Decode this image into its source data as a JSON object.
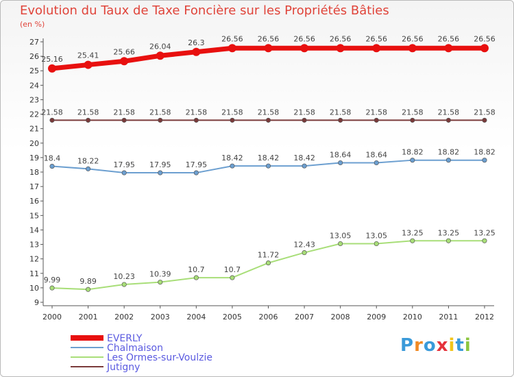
{
  "chart_data": {
    "type": "line",
    "title": "Evolution du Taux de Taxe Foncière sur les Propriétés Bâties",
    "ylabel": "(en %)",
    "xlabel": "",
    "ylim": [
      9,
      27
    ],
    "categories": [
      "2000",
      "2001",
      "2002",
      "2003",
      "2004",
      "2005",
      "2006",
      "2007",
      "2008",
      "2009",
      "2010",
      "2011",
      "2012"
    ],
    "yticks": [
      "9",
      "10",
      "11",
      "12",
      "13",
      "14",
      "15",
      "16",
      "17",
      "18",
      "19",
      "20",
      "21",
      "22",
      "23",
      "24",
      "25",
      "26",
      "27"
    ],
    "series": [
      {
        "name": "EVERLY",
        "color": "#e8100f",
        "values": [
          25.16,
          25.41,
          25.66,
          26.04,
          26.3,
          26.56,
          26.56,
          26.56,
          26.56,
          26.56,
          26.56,
          26.56,
          26.56
        ],
        "labels": [
          "25.16",
          "25.41",
          "25.66",
          "26.04",
          "26.3",
          "26.56",
          "26.56",
          "26.56",
          "26.56",
          "26.56",
          "26.56",
          "26.56",
          "26.56"
        ]
      },
      {
        "name": "Chalmaison",
        "color": "#6c9fd0",
        "values": [
          18.4,
          18.22,
          17.95,
          17.95,
          17.95,
          18.42,
          18.42,
          18.42,
          18.64,
          18.64,
          18.82,
          18.82,
          18.82
        ],
        "labels": [
          "18.4",
          "18.22",
          "17.95",
          "17.95",
          "17.95",
          "18.42",
          "18.42",
          "18.42",
          "18.64",
          "18.64",
          "18.82",
          "18.82",
          "18.82"
        ]
      },
      {
        "name": "Les Ormes-sur-Voulzie",
        "color": "#a8de78",
        "values": [
          9.99,
          9.89,
          10.23,
          10.39,
          10.7,
          10.7,
          11.72,
          12.43,
          13.05,
          13.05,
          13.25,
          13.25,
          13.25
        ],
        "labels": [
          "9.99",
          "9.89",
          "10.23",
          "10.39",
          "10.7",
          "10.7",
          "11.72",
          "12.43",
          "13.05",
          "13.05",
          "13.25",
          "13.25",
          "13.25"
        ]
      },
      {
        "name": "Jutigny",
        "color": "#7a3a3a",
        "values": [
          21.58,
          21.58,
          21.58,
          21.58,
          21.58,
          21.58,
          21.58,
          21.58,
          21.58,
          21.58,
          21.58,
          21.58,
          21.58
        ],
        "labels": [
          "21.58",
          "21.58",
          "21.58",
          "21.58",
          "21.58",
          "21.58",
          "21.58",
          "21.58",
          "21.58",
          "21.58",
          "21.58",
          "21.58",
          "21.58"
        ]
      }
    ],
    "legend_position": "bottom-left",
    "grid": false
  },
  "logo": {
    "letters": [
      "P",
      "r",
      "o",
      "x",
      "i",
      "t",
      "i"
    ],
    "colors": [
      "#3a9ad9",
      "#f08a24",
      "#3a9ad9",
      "#e5323b",
      "#f2c419",
      "#3a9ad9",
      "#8cc63f"
    ]
  }
}
